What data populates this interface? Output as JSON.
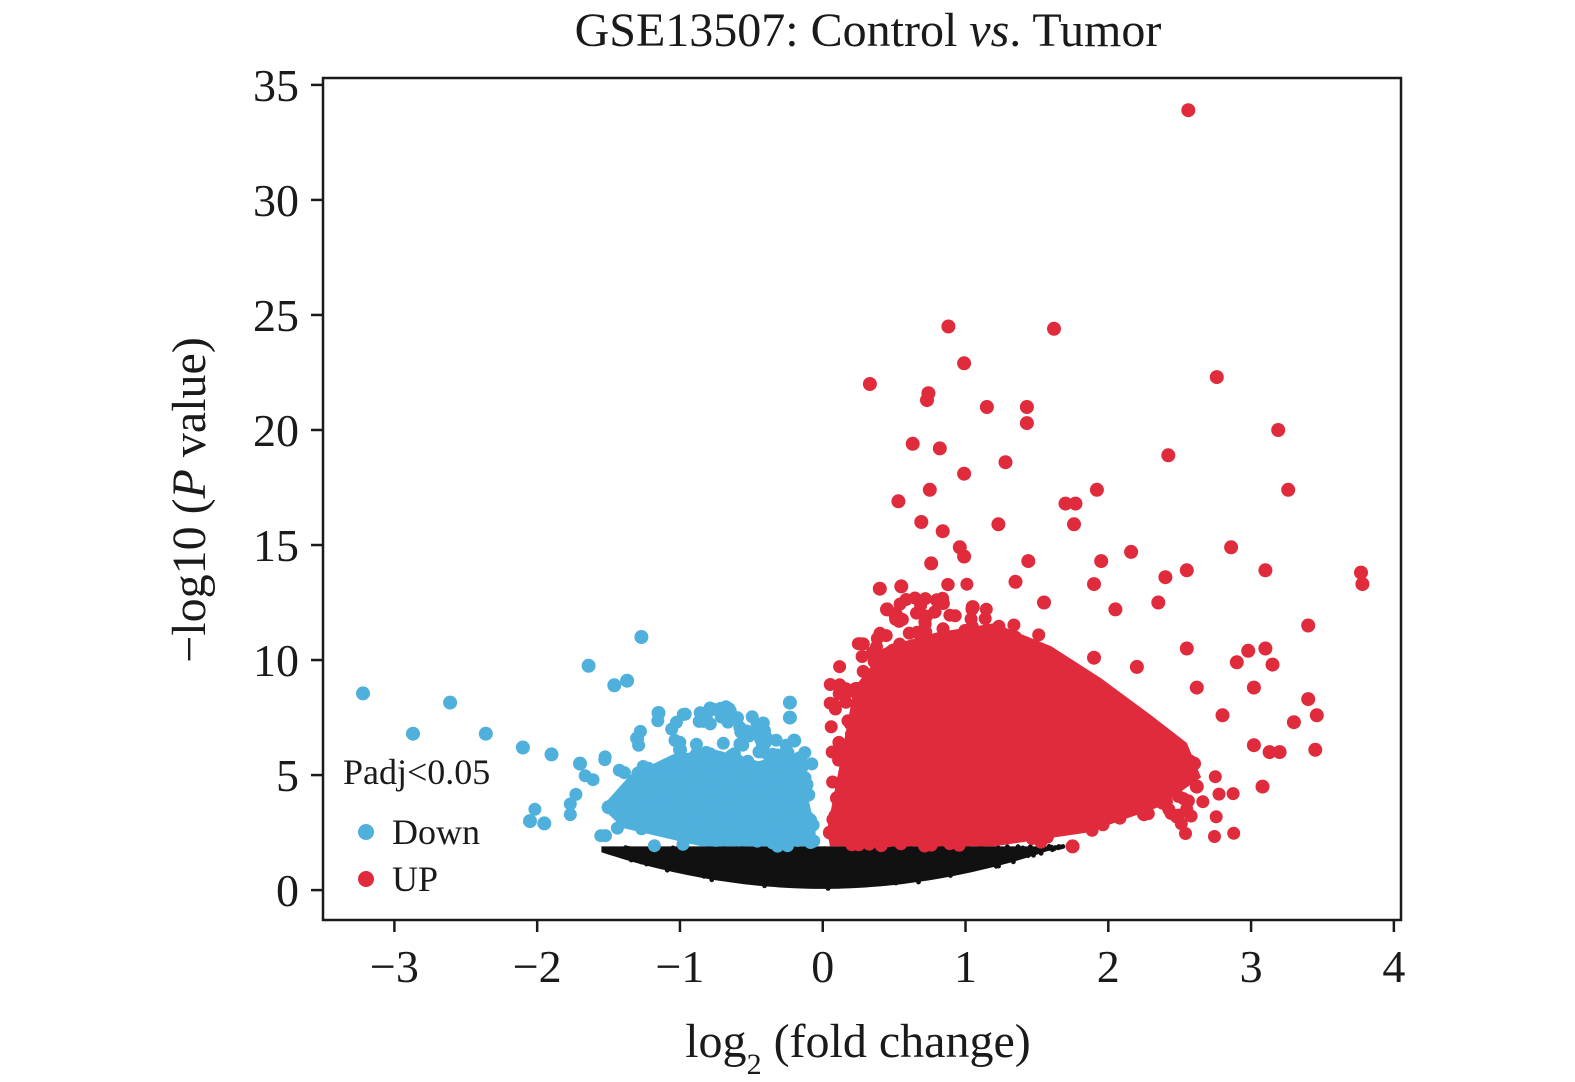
{
  "chart_data": {
    "type": "scatter",
    "title": {
      "prefix": "GSE13507: Control ",
      "italic": "vs",
      "suffix": ". Tumor"
    },
    "xlabel": {
      "main": "log",
      "sub": "2",
      "rest": " (fold change)"
    },
    "ylabel": {
      "prefix": "−log10 (",
      "italic": "P",
      "suffix": " value)"
    },
    "xlim": [
      -3.5,
      4.05
    ],
    "ylim": [
      -1.3,
      35.3
    ],
    "xticks": [
      -3,
      -2,
      -1,
      0,
      1,
      2,
      3,
      4
    ],
    "xtick_labels": [
      "−3",
      "−2",
      "−1",
      "0",
      "1",
      "2",
      "3",
      "4"
    ],
    "yticks": [
      0,
      5,
      10,
      15,
      20,
      25,
      30,
      35
    ],
    "ytick_labels": [
      "0",
      "5",
      "10",
      "15",
      "20",
      "25",
      "30",
      "35"
    ],
    "threshold_neglog10p": 1.9,
    "legend": {
      "title": "Padj<0.05",
      "position": "lower-left",
      "entries": [
        {
          "label": "Down",
          "color": "#4fb0dc"
        },
        {
          "label": "UP",
          "color": "#df2b3c"
        }
      ]
    },
    "colors": {
      "down": "#4fb0dc",
      "up": "#df2b3c",
      "ns": "#111111"
    },
    "series": [
      {
        "name": "Down",
        "color": "#4fb0dc",
        "points": [
          [
            -3.22,
            8.55
          ],
          [
            -2.61,
            8.15
          ],
          [
            -2.87,
            6.8
          ],
          [
            -2.36,
            6.8
          ],
          [
            -1.27,
            11.0
          ],
          [
            -1.64,
            9.75
          ],
          [
            -1.37,
            9.1
          ],
          [
            -1.46,
            8.9
          ],
          [
            -1.15,
            7.7
          ],
          [
            -0.82,
            7.5
          ],
          [
            -0.23,
            8.15
          ],
          [
            -0.23,
            7.5
          ],
          [
            -0.2,
            6.5
          ],
          [
            -1.9,
            5.9
          ],
          [
            -2.1,
            6.2
          ],
          [
            -1.7,
            5.5
          ],
          [
            -1.3,
            6.6
          ],
          [
            -1.0,
            6.1
          ],
          [
            -0.6,
            5.5
          ],
          [
            -0.3,
            5.2
          ],
          [
            -2.05,
            3.0
          ],
          [
            -1.95,
            2.9
          ],
          [
            -1.5,
            3.6
          ],
          [
            -1.1,
            4.0
          ],
          [
            -0.7,
            3.2
          ],
          [
            -0.4,
            2.8
          ],
          [
            -0.2,
            3.5
          ],
          [
            -0.15,
            4.5
          ]
        ]
      },
      {
        "name": "UP",
        "color": "#df2b3c",
        "points": [
          [
            2.56,
            33.9
          ],
          [
            0.88,
            24.5
          ],
          [
            1.62,
            24.4
          ],
          [
            0.99,
            22.9
          ],
          [
            2.76,
            22.3
          ],
          [
            0.33,
            22.0
          ],
          [
            0.74,
            21.6
          ],
          [
            0.73,
            21.3
          ],
          [
            1.15,
            21.0
          ],
          [
            1.43,
            21.0
          ],
          [
            1.43,
            20.3
          ],
          [
            3.19,
            20.0
          ],
          [
            0.63,
            19.4
          ],
          [
            0.82,
            19.2
          ],
          [
            2.42,
            18.9
          ],
          [
            1.28,
            18.6
          ],
          [
            0.99,
            18.1
          ],
          [
            0.75,
            17.4
          ],
          [
            1.92,
            17.4
          ],
          [
            3.26,
            17.4
          ],
          [
            0.53,
            16.9
          ],
          [
            1.77,
            16.8
          ],
          [
            1.7,
            16.8
          ],
          [
            0.69,
            16.0
          ],
          [
            1.23,
            15.9
          ],
          [
            1.76,
            15.9
          ],
          [
            0.84,
            15.6
          ],
          [
            2.86,
            14.9
          ],
          [
            0.96,
            14.9
          ],
          [
            0.99,
            14.5
          ],
          [
            2.16,
            14.7
          ],
          [
            1.95,
            14.3
          ],
          [
            1.44,
            14.3
          ],
          [
            0.76,
            14.2
          ],
          [
            2.55,
            13.9
          ],
          [
            3.1,
            13.9
          ],
          [
            3.77,
            13.8
          ],
          [
            3.78,
            13.3
          ],
          [
            0.4,
            13.1
          ],
          [
            0.55,
            13.2
          ],
          [
            1.35,
            13.4
          ],
          [
            1.9,
            13.3
          ],
          [
            2.4,
            13.6
          ],
          [
            3.4,
            11.5
          ],
          [
            0.45,
            12.2
          ],
          [
            0.8,
            12.6
          ],
          [
            1.05,
            12.3
          ],
          [
            1.55,
            12.5
          ],
          [
            2.05,
            12.2
          ],
          [
            2.35,
            12.5
          ],
          [
            3.1,
            10.5
          ],
          [
            2.55,
            10.5
          ],
          [
            2.98,
            10.4
          ],
          [
            3.15,
            9.8
          ],
          [
            2.9,
            9.9
          ],
          [
            0.35,
            10.3
          ],
          [
            1.3,
            10.8
          ],
          [
            1.9,
            10.1
          ],
          [
            2.2,
            9.7
          ],
          [
            2.62,
            8.8
          ],
          [
            3.02,
            8.8
          ],
          [
            3.4,
            8.3
          ],
          [
            3.46,
            7.6
          ],
          [
            3.3,
            7.3
          ],
          [
            2.8,
            7.6
          ],
          [
            3.02,
            6.3
          ],
          [
            3.13,
            6.0
          ],
          [
            3.2,
            6.0
          ],
          [
            3.45,
            6.1
          ],
          [
            3.08,
            4.5
          ],
          [
            2.62,
            4.5
          ],
          [
            2.38,
            3.8
          ],
          [
            2.25,
            3.3
          ],
          [
            1.8,
            2.9
          ],
          [
            1.75,
            1.9
          ],
          [
            0.3,
            2.2
          ],
          [
            0.2,
            3.0
          ],
          [
            0.1,
            4.0
          ],
          [
            0.05,
            2.5
          ],
          [
            0.5,
            4.5
          ],
          [
            0.9,
            5.5
          ],
          [
            1.4,
            6.0
          ],
          [
            1.9,
            5.5
          ],
          [
            2.3,
            6.5
          ],
          [
            2.6,
            5.5
          ]
        ]
      }
    ]
  }
}
